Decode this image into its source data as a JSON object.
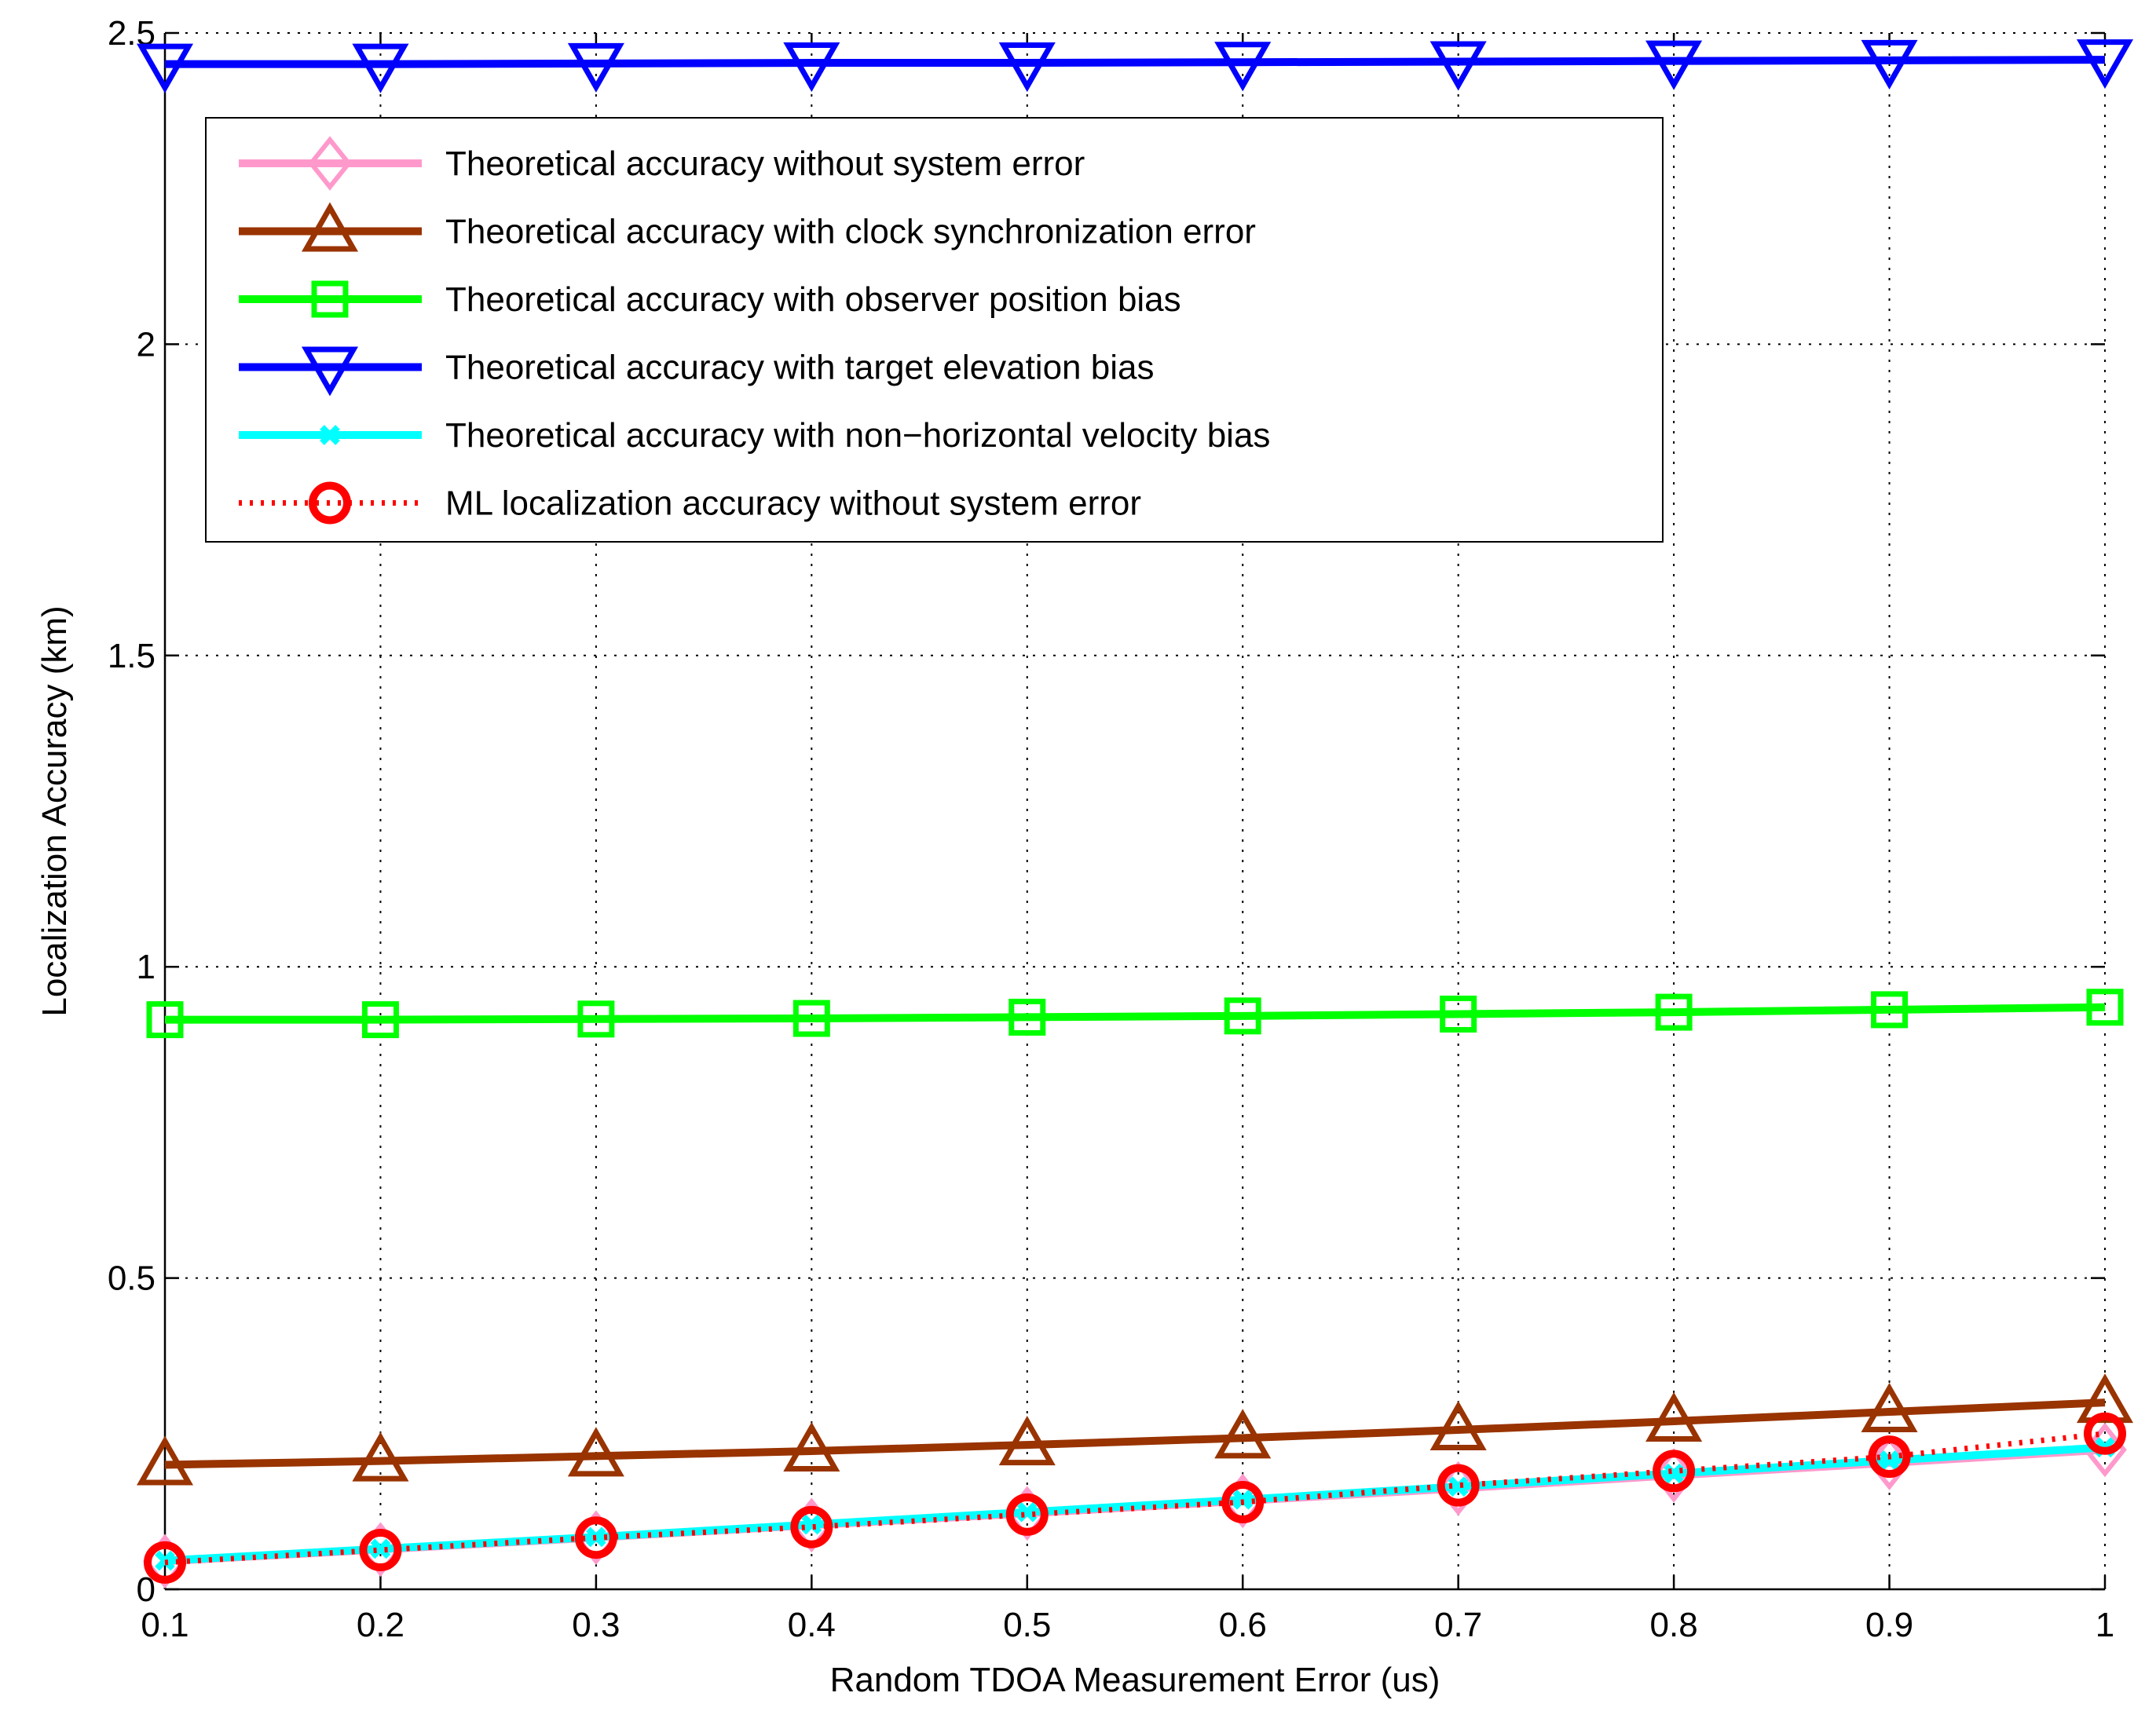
{
  "chart_data": {
    "type": "line",
    "title": "",
    "xlabel": "Random TDOA Measurement Error (us)",
    "ylabel": "Localization Accuracy (km)",
    "xlim": [
      0.1,
      1
    ],
    "ylim": [
      0,
      2.5
    ],
    "xticks": [
      0.1,
      0.2,
      0.3,
      0.4,
      0.5,
      0.6,
      0.7,
      0.8,
      0.9,
      1
    ],
    "xtick_labels": [
      "0.1",
      "0.2",
      "0.3",
      "0.4",
      "0.5",
      "0.6",
      "0.7",
      "0.8",
      "0.9",
      "1"
    ],
    "yticks": [
      0,
      0.5,
      1,
      1.5,
      2,
      2.5
    ],
    "ytick_labels": [
      "0",
      "0.5",
      "1",
      "1.5",
      "2",
      "2.5"
    ],
    "grid": true,
    "legend_position": "top-left",
    "x": [
      0.1,
      0.2,
      0.3,
      0.4,
      0.5,
      0.6,
      0.7,
      0.8,
      0.9,
      1.0
    ],
    "series": [
      {
        "name": "Theoretical accuracy without system error",
        "color": "#ff99cc",
        "marker": "diamond",
        "line": "solid",
        "values": [
          0.045,
          0.064,
          0.083,
          0.103,
          0.122,
          0.142,
          0.162,
          0.183,
          0.203,
          0.224
        ]
      },
      {
        "name": "Theoretical accuracy with clock synchronization error",
        "color": "#993300",
        "marker": "triangle-up",
        "line": "solid",
        "values": [
          0.2,
          0.206,
          0.214,
          0.222,
          0.232,
          0.243,
          0.256,
          0.27,
          0.285,
          0.3
        ]
      },
      {
        "name": "Theoretical accuracy with observer position bias",
        "color": "#00ff00",
        "marker": "square",
        "line": "solid",
        "values": [
          0.915,
          0.915,
          0.916,
          0.917,
          0.919,
          0.921,
          0.924,
          0.927,
          0.931,
          0.935
        ]
      },
      {
        "name": "Theoretical accuracy with target elevation bias",
        "color": "#0000ff",
        "marker": "triangle-down",
        "line": "solid",
        "values": [
          2.45,
          2.45,
          2.451,
          2.452,
          2.452,
          2.453,
          2.454,
          2.455,
          2.456,
          2.457
        ]
      },
      {
        "name": "Theoretical accuracy with non−horizontal velocity bias",
        "color": "#00ffff",
        "marker": "x",
        "line": "solid",
        "values": [
          0.046,
          0.065,
          0.084,
          0.104,
          0.124,
          0.144,
          0.165,
          0.186,
          0.207,
          0.228
        ]
      },
      {
        "name": "ML localization accuracy without system error",
        "color": "#ff0000",
        "marker": "circle",
        "line": "dotted",
        "values": [
          0.043,
          0.063,
          0.083,
          0.1,
          0.12,
          0.14,
          0.167,
          0.19,
          0.213,
          0.25
        ]
      }
    ]
  }
}
